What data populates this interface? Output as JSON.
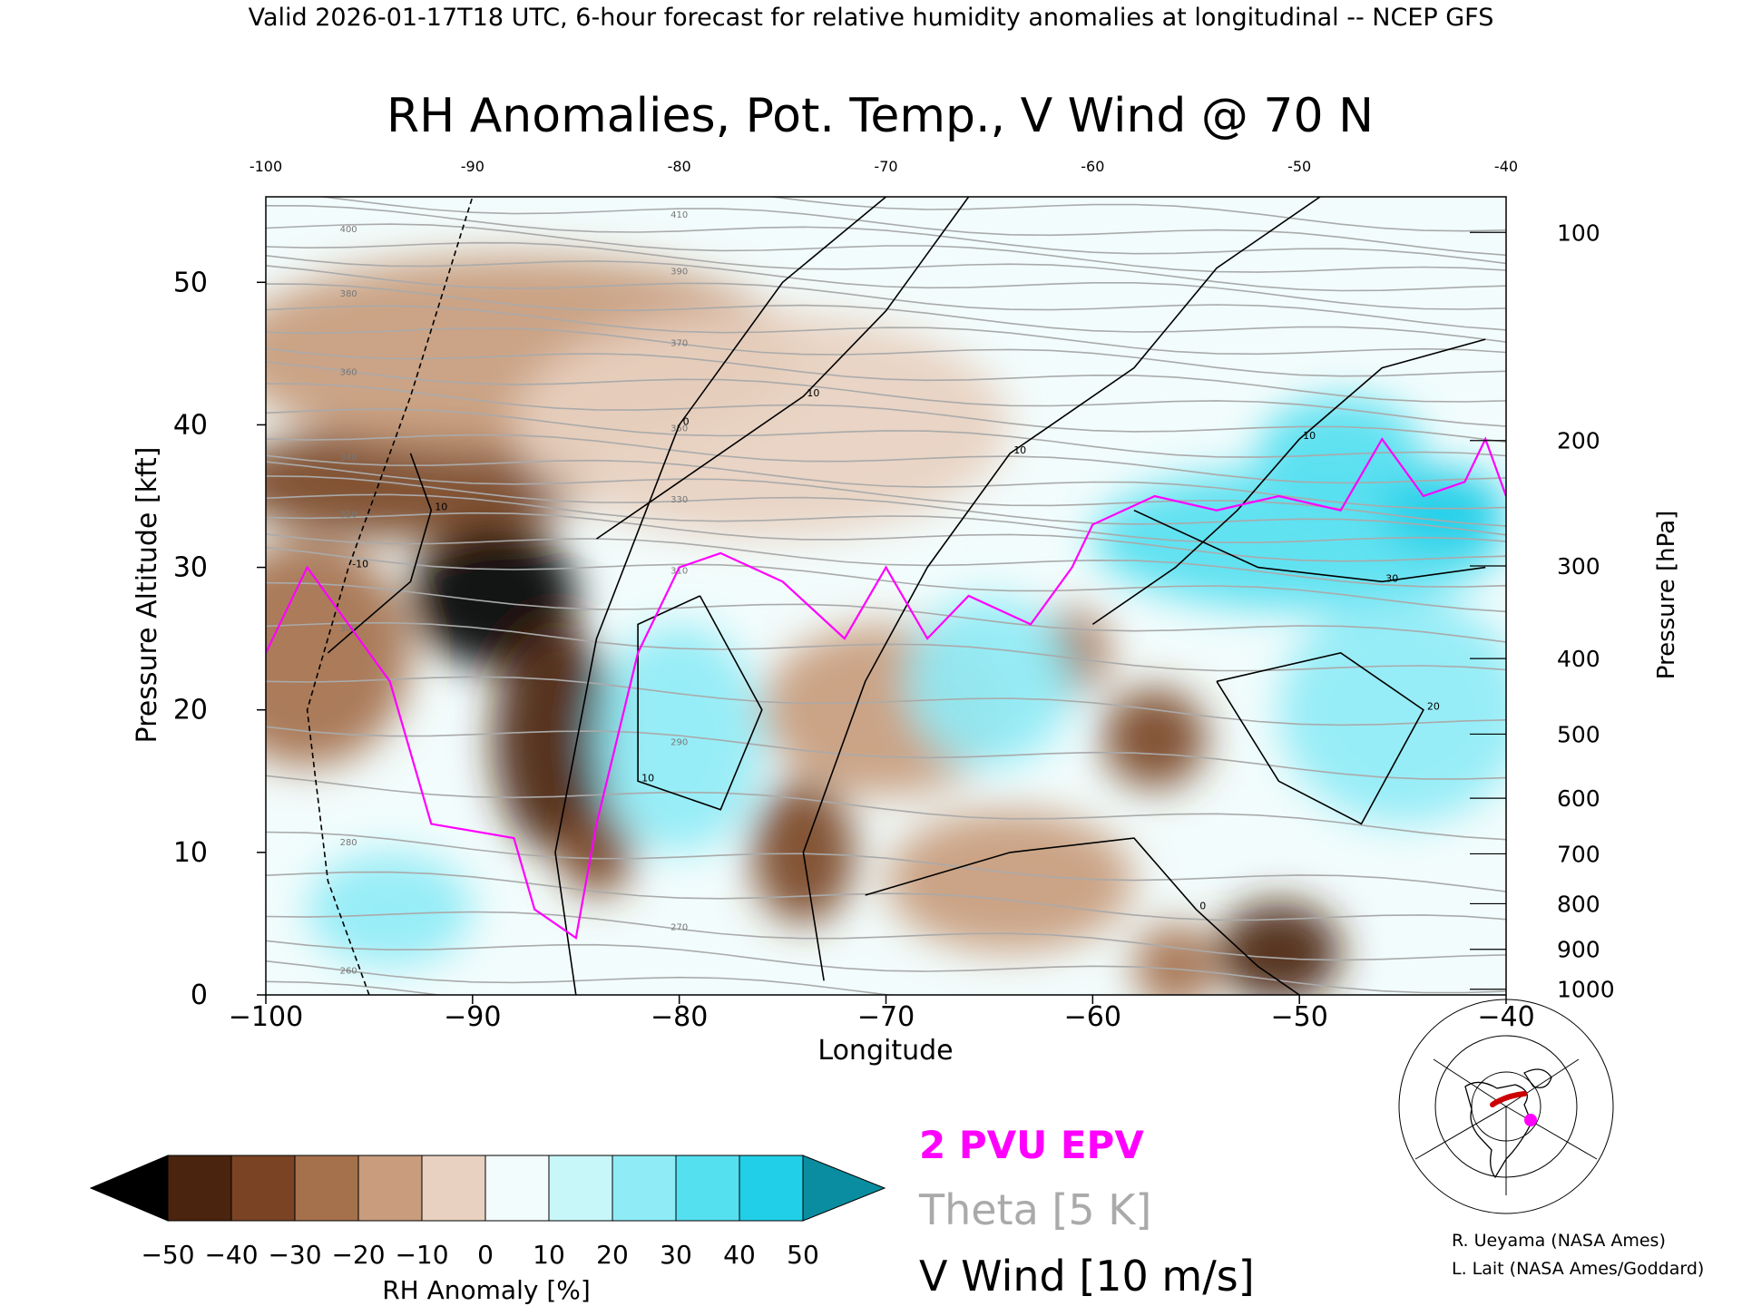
{
  "header_text": "Valid 2026-01-17T18 UTC, 6-hour forecast for relative humidity anomalies at longitudinal -- NCEP GFS",
  "chart_data": {
    "type": "heatmap",
    "title": "RH Anomalies, Pot. Temp., V Wind @ 70 N",
    "xlabel": "Longitude",
    "ylabel_left": "Pressure Altitude [kft]",
    "ylabel_right": "Pressure [hPa]",
    "xlim": [
      -100,
      -40
    ],
    "ylim": [
      0,
      56
    ],
    "x_ticks": [
      -100,
      -90,
      -80,
      -70,
      -60,
      -50,
      -40
    ],
    "x_tick_labels": [
      "−100",
      "−90",
      "−80",
      "−70",
      "−60",
      "−50",
      "−40"
    ],
    "top_tick_labels": [
      "-100",
      "-90",
      "-80",
      "-70",
      "-60",
      "-50",
      "-40"
    ],
    "y_ticks": [
      0,
      10,
      20,
      30,
      40,
      50
    ],
    "pressure_ticks": [
      {
        "label": "100",
        "kft": 53.5
      },
      {
        "label": "200",
        "kft": 38.9
      },
      {
        "label": "300",
        "kft": 30.1
      },
      {
        "label": "400",
        "kft": 23.6
      },
      {
        "label": "500",
        "kft": 18.3
      },
      {
        "label": "600",
        "kft": 13.8
      },
      {
        "label": "700",
        "kft": 9.9
      },
      {
        "label": "800",
        "kft": 6.4
      },
      {
        "label": "900",
        "kft": 3.2
      },
      {
        "label": "1000",
        "kft": 0.4
      }
    ],
    "rh_anomaly_fields": [
      {
        "lon": -98,
        "kft": 24,
        "rh": -22,
        "rx": 5,
        "ry": 8
      },
      {
        "lon": -93,
        "kft": 36,
        "rh": -40,
        "rx": 9,
        "ry": 4
      },
      {
        "lon": -89,
        "kft": 28,
        "rh": -52,
        "rx": 4,
        "ry": 5
      },
      {
        "lon": -86,
        "kft": 18,
        "rh": -42,
        "rx": 3,
        "ry": 8
      },
      {
        "lon": -84,
        "kft": 10,
        "rh": -40,
        "rx": 1.8,
        "ry": 3
      },
      {
        "lon": -88,
        "kft": 45,
        "rh": -12,
        "rx": 14,
        "ry": 7
      },
      {
        "lon": -76,
        "kft": 40,
        "rh": -8,
        "rx": 12,
        "ry": 8
      },
      {
        "lon": -74,
        "kft": 10,
        "rh": -38,
        "rx": 2.5,
        "ry": 5
      },
      {
        "lon": -70,
        "kft": 20,
        "rh": -18,
        "rx": 6,
        "ry": 6
      },
      {
        "lon": -64,
        "kft": 8,
        "rh": -18,
        "rx": 6,
        "ry": 5
      },
      {
        "lon": -61,
        "kft": 24,
        "rh": -28,
        "rx": 1.8,
        "ry": 3
      },
      {
        "lon": -57,
        "kft": 18,
        "rh": -32,
        "rx": 2.5,
        "ry": 3.5
      },
      {
        "lon": -51,
        "kft": 3,
        "rh": -48,
        "rx": 3,
        "ry": 3.5
      },
      {
        "lon": -56,
        "kft": 2,
        "rh": -25,
        "rx": 2,
        "ry": 3
      },
      {
        "lon": -80,
        "kft": 18,
        "rh": 22,
        "rx": 4,
        "ry": 8
      },
      {
        "lon": -94,
        "kft": 6,
        "rh": 20,
        "rx": 4,
        "ry": 4
      },
      {
        "lon": -65,
        "kft": 22,
        "rh": 20,
        "rx": 4,
        "ry": 6
      },
      {
        "lon": -50,
        "kft": 32,
        "rh": 30,
        "rx": 10,
        "ry": 5
      },
      {
        "lon": -48,
        "kft": 38,
        "rh": 38,
        "rx": 4,
        "ry": 4
      },
      {
        "lon": -43,
        "kft": 34,
        "rh": 48,
        "rx": 3,
        "ry": 3
      },
      {
        "lon": -45,
        "kft": 20,
        "rh": 22,
        "rx": 6,
        "ry": 8
      },
      {
        "lon": -55,
        "kft": 50,
        "rh": 3,
        "rx": 10,
        "ry": 6
      }
    ],
    "theta_levels_K": [
      250,
      255,
      260,
      265,
      270,
      275,
      280,
      285,
      290,
      295,
      300,
      305,
      310,
      315,
      320,
      325,
      330,
      335,
      340,
      345,
      350,
      355,
      360,
      365,
      370,
      375,
      380,
      385,
      390,
      395,
      400,
      405,
      410,
      415
    ],
    "theta_labels": [
      "260",
      "270",
      "280",
      "290",
      "300",
      "310",
      "320",
      "330",
      "340",
      "350",
      "360",
      "370",
      "380",
      "390",
      "400",
      "410"
    ],
    "theta_tilt_kft_per_deg": -0.06,
    "v_wind_labels": [
      "-10",
      "0",
      "10",
      "20",
      "30"
    ],
    "v_wind_contours": [
      {
        "label": "0",
        "points": [
          [
            -85,
            0
          ],
          [
            -86,
            10
          ],
          [
            -84,
            25
          ],
          [
            -80,
            40
          ],
          [
            -75,
            50
          ],
          [
            -70,
            56
          ]
        ]
      },
      {
        "label": "10",
        "points": [
          [
            -66,
            56
          ],
          [
            -70,
            48
          ],
          [
            -74,
            42
          ],
          [
            -80,
            36
          ],
          [
            -84,
            32
          ]
        ]
      },
      {
        "label": "-10",
        "points": [
          [
            -95,
            0
          ],
          [
            -97,
            8
          ],
          [
            -98,
            20
          ],
          [
            -96,
            30
          ],
          [
            -93,
            42
          ],
          [
            -90,
            56
          ]
        ]
      },
      {
        "label": "10",
        "points": [
          [
            -79,
            28
          ],
          [
            -76,
            20
          ],
          [
            -78,
            13
          ],
          [
            -82,
            15
          ],
          [
            -82,
            26
          ],
          [
            -79,
            28
          ]
        ]
      },
      {
        "label": "10",
        "points": [
          [
            -73,
            1
          ],
          [
            -74,
            10
          ],
          [
            -71,
            22
          ],
          [
            -68,
            30
          ],
          [
            -64,
            38
          ],
          [
            -58,
            44
          ],
          [
            -54,
            51
          ],
          [
            -49,
            56
          ]
        ]
      },
      {
        "label": "0",
        "points": [
          [
            -71,
            7
          ],
          [
            -64,
            10
          ],
          [
            -58,
            11
          ],
          [
            -55,
            6
          ],
          [
            -52,
            2
          ],
          [
            -50,
            0
          ]
        ]
      },
      {
        "label": "10",
        "points": [
          [
            -60,
            26
          ],
          [
            -56,
            30
          ],
          [
            -53,
            34
          ],
          [
            -50,
            39
          ],
          [
            -46,
            44
          ],
          [
            -41,
            46
          ]
        ]
      },
      {
        "label": "20",
        "points": [
          [
            -54,
            22
          ],
          [
            -51,
            15
          ],
          [
            -47,
            12
          ],
          [
            -44,
            20
          ],
          [
            -48,
            24
          ],
          [
            -54,
            22
          ]
        ]
      },
      {
        "label": "30",
        "points": [
          [
            -58,
            34
          ],
          [
            -52,
            30
          ],
          [
            -46,
            29
          ],
          [
            -41,
            30
          ]
        ]
      },
      {
        "label": "10",
        "points": [
          [
            -97,
            24
          ],
          [
            -93,
            29
          ],
          [
            -92,
            34
          ],
          [
            -93,
            38
          ]
        ]
      }
    ],
    "epv_2pvu": [
      [
        -100,
        24
      ],
      [
        -98,
        30
      ],
      [
        -96,
        26
      ],
      [
        -94,
        22
      ],
      [
        -92,
        12
      ],
      [
        -88,
        11
      ],
      [
        -87,
        6
      ],
      [
        -85,
        4
      ],
      [
        -84,
        12
      ],
      [
        -82,
        24
      ],
      [
        -80,
        30
      ],
      [
        -78,
        31
      ],
      [
        -75,
        29
      ],
      [
        -72,
        25
      ],
      [
        -70,
        30
      ],
      [
        -68,
        25
      ],
      [
        -66,
        28
      ],
      [
        -63,
        26
      ],
      [
        -61,
        30
      ],
      [
        -60,
        33
      ],
      [
        -57,
        35
      ],
      [
        -54,
        34
      ],
      [
        -51,
        35
      ],
      [
        -48,
        34
      ],
      [
        -46,
        39
      ],
      [
        -44,
        35
      ],
      [
        -42,
        36
      ],
      [
        -41,
        39
      ],
      [
        -40,
        35
      ]
    ]
  },
  "colorbar": {
    "label": "RH Anomaly [%]",
    "tick_labels": [
      "−50",
      "−40",
      "−30",
      "−20",
      "−10",
      "0",
      "10",
      "20",
      "30",
      "40",
      "50"
    ],
    "colors": [
      "#000000",
      "#4a240e",
      "#7a4424",
      "#a5704c",
      "#c89c7c",
      "#e8d1c0",
      "#f2fcfc",
      "#c8f7fa",
      "#8fecf6",
      "#55e0f0",
      "#22cfe8",
      "#0a8da0"
    ]
  },
  "legend": {
    "epv": "2 PVU EPV",
    "theta": "Theta [5 K]",
    "vwind": "V Wind [10 m/s]",
    "epv_color": "#ff00ff",
    "theta_color": "#aaaaaa",
    "vwind_color": "#000000"
  },
  "credits": [
    "R. Ueyama (NASA Ames)",
    "L. Lait (NASA Ames/Goddard)"
  ],
  "inset_map": {
    "description_icon": "locator-map-icon",
    "section_color": "#cc0000",
    "marker_color": "#ff00ff"
  }
}
